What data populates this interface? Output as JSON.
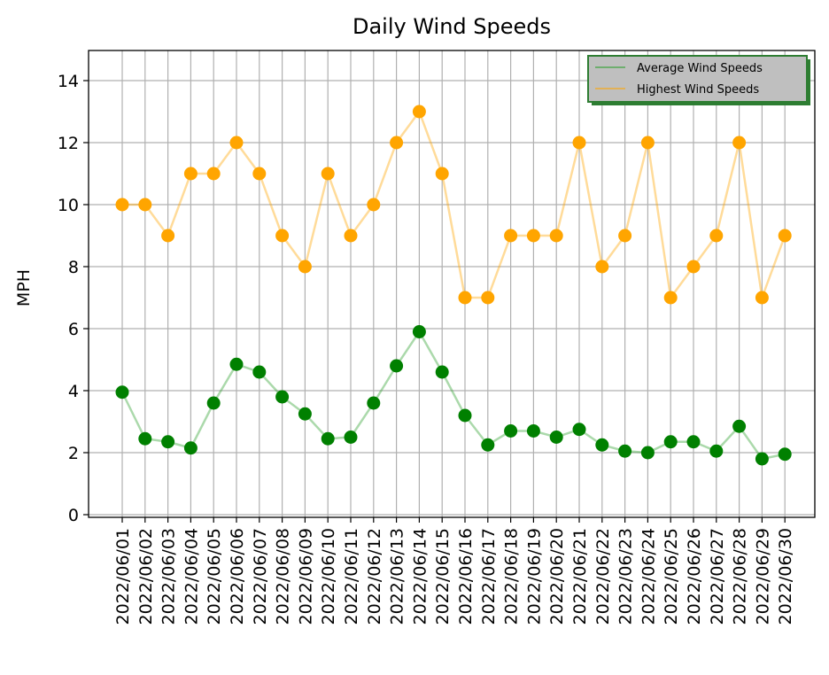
{
  "chart_data": {
    "type": "line",
    "title": "Daily Wind Speeds",
    "xlabel": "",
    "ylabel": "MPH",
    "ylim": [
      0,
      15
    ],
    "yticks": [
      "0",
      "2",
      "4",
      "6",
      "8",
      "10",
      "12",
      "14"
    ],
    "grid": true,
    "legend_position": "top-right",
    "categories": [
      "2022/06/01",
      "2022/06/02",
      "2022/06/03",
      "2022/06/04",
      "2022/06/05",
      "2022/06/06",
      "2022/06/07",
      "2022/06/08",
      "2022/06/09",
      "2022/06/10",
      "2022/06/11",
      "2022/06/12",
      "2022/06/13",
      "2022/06/14",
      "2022/06/15",
      "2022/06/16",
      "2022/06/17",
      "2022/06/18",
      "2022/06/19",
      "2022/06/20",
      "2022/06/21",
      "2022/06/22",
      "2022/06/23",
      "2022/06/24",
      "2022/06/25",
      "2022/06/26",
      "2022/06/27",
      "2022/06/28",
      "2022/06/29",
      "2022/06/30"
    ],
    "series": [
      {
        "name": "Average Wind Speeds",
        "color": "#2ca02c",
        "marker_color": "#008000",
        "values": [
          3.95,
          2.45,
          2.35,
          2.15,
          3.6,
          4.85,
          4.6,
          3.8,
          3.25,
          2.45,
          2.5,
          3.6,
          4.8,
          5.9,
          4.6,
          3.2,
          2.25,
          2.7,
          2.7,
          2.5,
          2.75,
          2.25,
          2.05,
          2.0,
          2.35,
          2.35,
          2.05,
          2.85,
          1.8,
          1.95
        ]
      },
      {
        "name": "Highest Wind Speeds",
        "color": "#ffa500",
        "marker_color": "#ffa500",
        "values": [
          10,
          10,
          9,
          11,
          11,
          12,
          11,
          9,
          8,
          11,
          9,
          10,
          12,
          13,
          11,
          7,
          7,
          9,
          9,
          9,
          12,
          8,
          9,
          12,
          7,
          8,
          9,
          12,
          7,
          9
        ]
      }
    ]
  }
}
